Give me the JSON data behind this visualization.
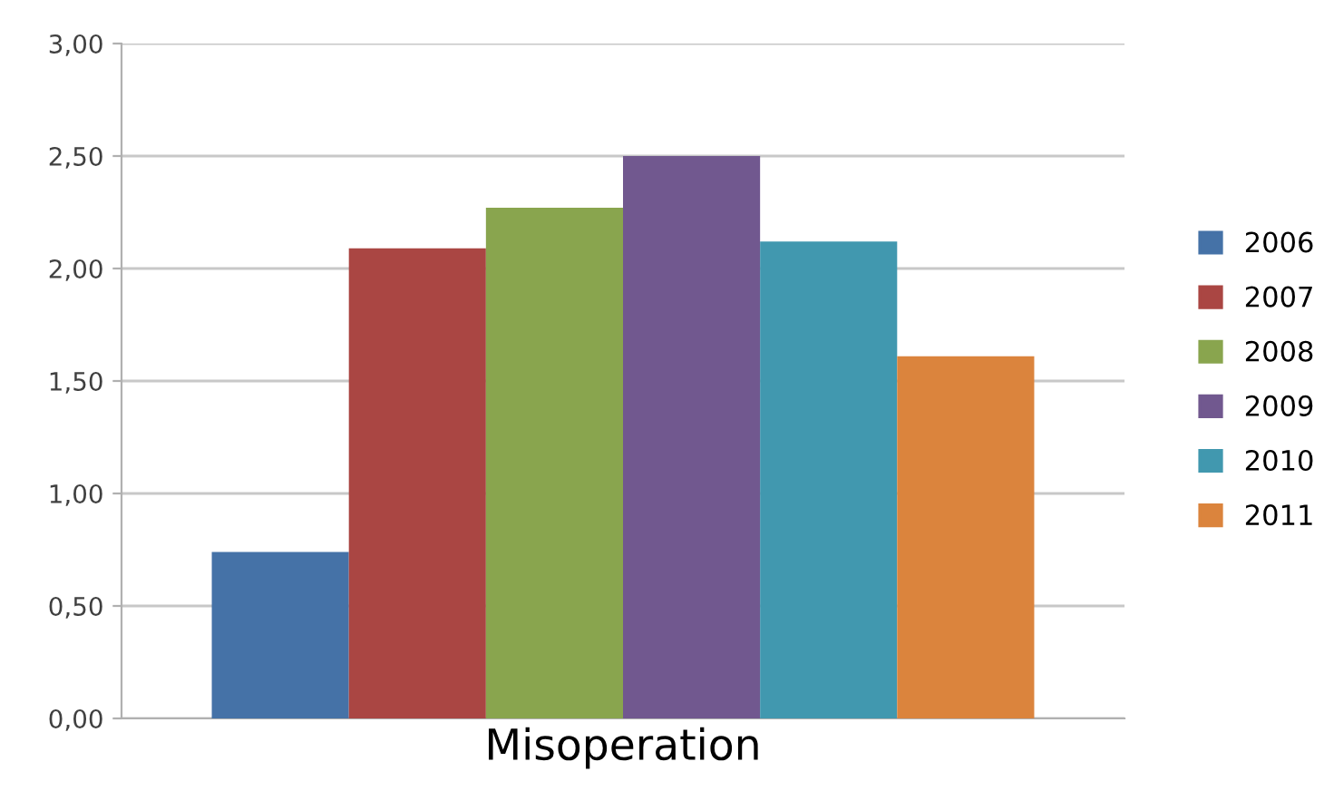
{
  "chart_data": {
    "type": "bar",
    "categories": [
      "Misoperation"
    ],
    "series": [
      {
        "name": "2006",
        "color": "#4572a7",
        "values": [
          0.74
        ]
      },
      {
        "name": "2007",
        "color": "#aa4643",
        "values": [
          2.09
        ]
      },
      {
        "name": "2008",
        "color": "#89a54e",
        "values": [
          2.27
        ]
      },
      {
        "name": "2009",
        "color": "#71588f",
        "values": [
          2.5
        ]
      },
      {
        "name": "2010",
        "color": "#4198af",
        "values": [
          2.12
        ]
      },
      {
        "name": "2011",
        "color": "#db843d",
        "values": [
          1.61
        ]
      }
    ],
    "ylim": [
      0,
      3
    ],
    "yticks": [
      {
        "value": 0,
        "label": "0,00"
      },
      {
        "value": 0.5,
        "label": "0,50"
      },
      {
        "value": 1,
        "label": "1,00"
      },
      {
        "value": 1.5,
        "label": "1,50"
      },
      {
        "value": 2,
        "label": "2,00"
      },
      {
        "value": 2.5,
        "label": "2,50"
      },
      {
        "value": 3,
        "label": "3,00"
      }
    ],
    "grid": "y",
    "legend": "right"
  }
}
